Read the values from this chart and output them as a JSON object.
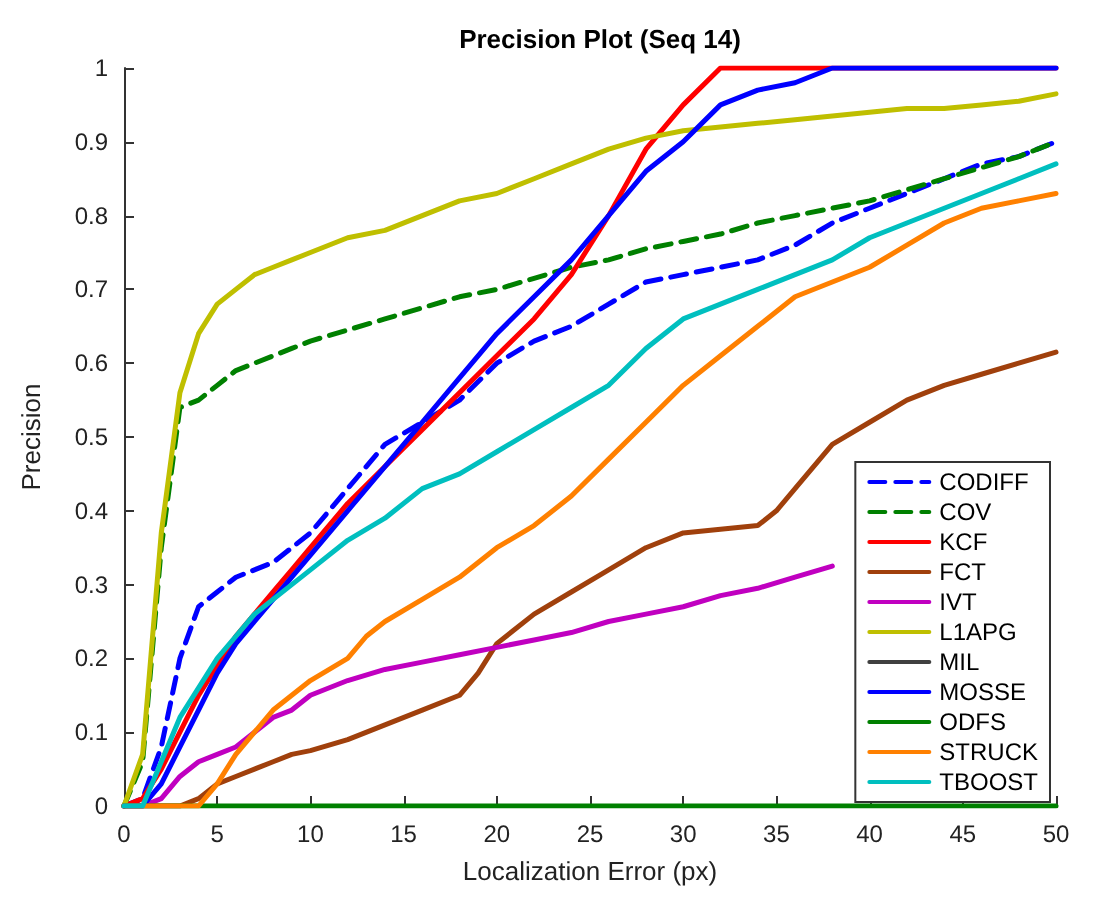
{
  "chart_data": {
    "type": "line",
    "title": "Precision Plot (Seq 14)",
    "xlabel": "Localization Error (px)",
    "ylabel": "Precision",
    "xlim": [
      0,
      50
    ],
    "xticks": [
      0,
      5,
      10,
      15,
      20,
      25,
      30,
      35,
      40,
      45,
      50
    ],
    "ylim": [
      0,
      1
    ],
    "yticks": [
      0,
      0.1,
      0.2,
      0.3,
      0.4,
      0.5,
      0.6,
      0.7,
      0.8,
      0.9,
      1
    ],
    "grid": false,
    "legend": "bottom right",
    "marker": "none",
    "series": [
      {
        "name": "CODIFF",
        "color": "#0000ff",
        "line_style": "dashed",
        "x": [
          0,
          1,
          2,
          3,
          4,
          5,
          6,
          7,
          8,
          9,
          10,
          12,
          14,
          16,
          18,
          20,
          22,
          24,
          26,
          28,
          30,
          32,
          34,
          36,
          38,
          40,
          42,
          44,
          46,
          48,
          50
        ],
        "values": [
          0,
          0.01,
          0.08,
          0.2,
          0.27,
          0.29,
          0.31,
          0.32,
          0.33,
          0.35,
          0.37,
          0.43,
          0.49,
          0.52,
          0.55,
          0.6,
          0.63,
          0.65,
          0.68,
          0.71,
          0.72,
          0.73,
          0.74,
          0.76,
          0.79,
          0.81,
          0.83,
          0.85,
          0.87,
          0.88,
          0.9
        ]
      },
      {
        "name": "COV",
        "color": "#008000",
        "line_style": "dashed",
        "x": [
          0,
          1,
          2,
          3,
          4,
          5,
          6,
          7,
          8,
          9,
          10,
          12,
          14,
          16,
          18,
          20,
          22,
          24,
          26,
          28,
          30,
          32,
          34,
          36,
          38,
          40,
          42,
          44,
          46,
          48,
          50
        ],
        "values": [
          0,
          0.06,
          0.35,
          0.54,
          0.55,
          0.57,
          0.59,
          0.6,
          0.61,
          0.62,
          0.63,
          0.645,
          0.66,
          0.675,
          0.69,
          0.7,
          0.715,
          0.73,
          0.74,
          0.755,
          0.765,
          0.775,
          0.79,
          0.8,
          0.81,
          0.82,
          0.835,
          0.85,
          0.865,
          0.88,
          0.9
        ]
      },
      {
        "name": "KCF",
        "color": "#ff0000",
        "line_style": "solid",
        "x": [
          0,
          1,
          2,
          3,
          4,
          5,
          6,
          7,
          8,
          9,
          10,
          12,
          14,
          16,
          18,
          20,
          22,
          24,
          26,
          28,
          30,
          32,
          50
        ],
        "values": [
          0,
          0.01,
          0.05,
          0.1,
          0.15,
          0.19,
          0.23,
          0.26,
          0.29,
          0.32,
          0.35,
          0.41,
          0.46,
          0.51,
          0.56,
          0.61,
          0.66,
          0.72,
          0.8,
          0.89,
          0.95,
          1,
          1
        ]
      },
      {
        "name": "FCT",
        "color": "#a0400c",
        "line_style": "solid",
        "x": [
          0,
          3,
          4,
          5,
          6,
          7,
          8,
          9,
          10,
          12,
          14,
          16,
          18,
          19,
          20,
          22,
          24,
          26,
          28,
          30,
          32,
          34,
          35,
          36,
          38,
          40,
          42,
          44,
          46,
          48,
          50
        ],
        "values": [
          0,
          0,
          0.01,
          0.03,
          0.04,
          0.05,
          0.06,
          0.07,
          0.075,
          0.09,
          0.11,
          0.13,
          0.15,
          0.18,
          0.22,
          0.26,
          0.29,
          0.32,
          0.35,
          0.37,
          0.375,
          0.38,
          0.4,
          0.43,
          0.49,
          0.52,
          0.55,
          0.57,
          0.585,
          0.6,
          0.615
        ]
      },
      {
        "name": "IVT",
        "color": "#c000c0",
        "line_style": "solid",
        "x": [
          0,
          1,
          2,
          3,
          4,
          5,
          6,
          7,
          8,
          9,
          10,
          12,
          14,
          16,
          18,
          20,
          22,
          24,
          26,
          28,
          30,
          32,
          34,
          36,
          38
        ],
        "values": [
          0,
          0,
          0.01,
          0.04,
          0.06,
          0.07,
          0.08,
          0.1,
          0.12,
          0.13,
          0.15,
          0.17,
          0.185,
          0.195,
          0.205,
          0.215,
          0.225,
          0.235,
          0.25,
          0.26,
          0.27,
          0.285,
          0.295,
          0.31,
          0.325
        ]
      },
      {
        "name": "L1APG",
        "color": "#bfbf00",
        "line_style": "solid",
        "x": [
          0,
          1,
          2,
          3,
          4,
          5,
          6,
          7,
          8,
          9,
          10,
          12,
          14,
          16,
          18,
          20,
          22,
          24,
          26,
          28,
          30,
          32,
          34,
          36,
          38,
          40,
          42,
          44,
          46,
          48,
          50
        ],
        "values": [
          0,
          0.07,
          0.37,
          0.56,
          0.64,
          0.68,
          0.7,
          0.72,
          0.73,
          0.74,
          0.75,
          0.77,
          0.78,
          0.8,
          0.82,
          0.83,
          0.85,
          0.87,
          0.89,
          0.905,
          0.915,
          0.92,
          0.925,
          0.93,
          0.935,
          0.94,
          0.945,
          0.945,
          0.95,
          0.955,
          0.965
        ]
      },
      {
        "name": "MIL",
        "color": "#404040",
        "line_style": "solid"
      },
      {
        "name": "MOSSE",
        "color": "#0000ff",
        "line_style": "solid",
        "x": [
          0,
          1,
          2,
          3,
          4,
          5,
          6,
          7,
          8,
          9,
          10,
          12,
          14,
          16,
          18,
          20,
          22,
          24,
          26,
          28,
          30,
          32,
          34,
          36,
          38,
          50
        ],
        "values": [
          0,
          0,
          0.03,
          0.08,
          0.13,
          0.18,
          0.22,
          0.25,
          0.28,
          0.31,
          0.34,
          0.4,
          0.46,
          0.52,
          0.58,
          0.64,
          0.69,
          0.74,
          0.8,
          0.86,
          0.9,
          0.95,
          0.97,
          0.98,
          1,
          1
        ]
      },
      {
        "name": "ODFS",
        "color": "#008000",
        "line_style": "solid",
        "x": [
          0,
          50
        ],
        "values": [
          0,
          0
        ]
      },
      {
        "name": "STRUCK",
        "color": "#ff8000",
        "line_style": "solid",
        "x": [
          0,
          4,
          5,
          6,
          7,
          8,
          9,
          10,
          12,
          13,
          14,
          16,
          18,
          20,
          22,
          24,
          26,
          28,
          30,
          32,
          34,
          36,
          38,
          40,
          42,
          44,
          46,
          48,
          50
        ],
        "values": [
          0,
          0,
          0.03,
          0.07,
          0.1,
          0.13,
          0.15,
          0.17,
          0.2,
          0.23,
          0.25,
          0.28,
          0.31,
          0.35,
          0.38,
          0.42,
          0.47,
          0.52,
          0.57,
          0.61,
          0.65,
          0.69,
          0.71,
          0.73,
          0.76,
          0.79,
          0.81,
          0.82,
          0.83
        ]
      },
      {
        "name": "TBOOST",
        "color": "#00bfbf",
        "line_style": "solid",
        "x": [
          0,
          1,
          2,
          3,
          4,
          5,
          6,
          7,
          8,
          9,
          10,
          12,
          14,
          16,
          18,
          20,
          22,
          24,
          26,
          28,
          30,
          32,
          34,
          36,
          38,
          40,
          42,
          44,
          46,
          48,
          50
        ],
        "values": [
          0,
          0,
          0.06,
          0.12,
          0.16,
          0.2,
          0.23,
          0.26,
          0.28,
          0.3,
          0.32,
          0.36,
          0.39,
          0.43,
          0.45,
          0.48,
          0.51,
          0.54,
          0.57,
          0.62,
          0.66,
          0.68,
          0.7,
          0.72,
          0.74,
          0.77,
          0.79,
          0.81,
          0.83,
          0.85,
          0.87
        ]
      }
    ]
  }
}
